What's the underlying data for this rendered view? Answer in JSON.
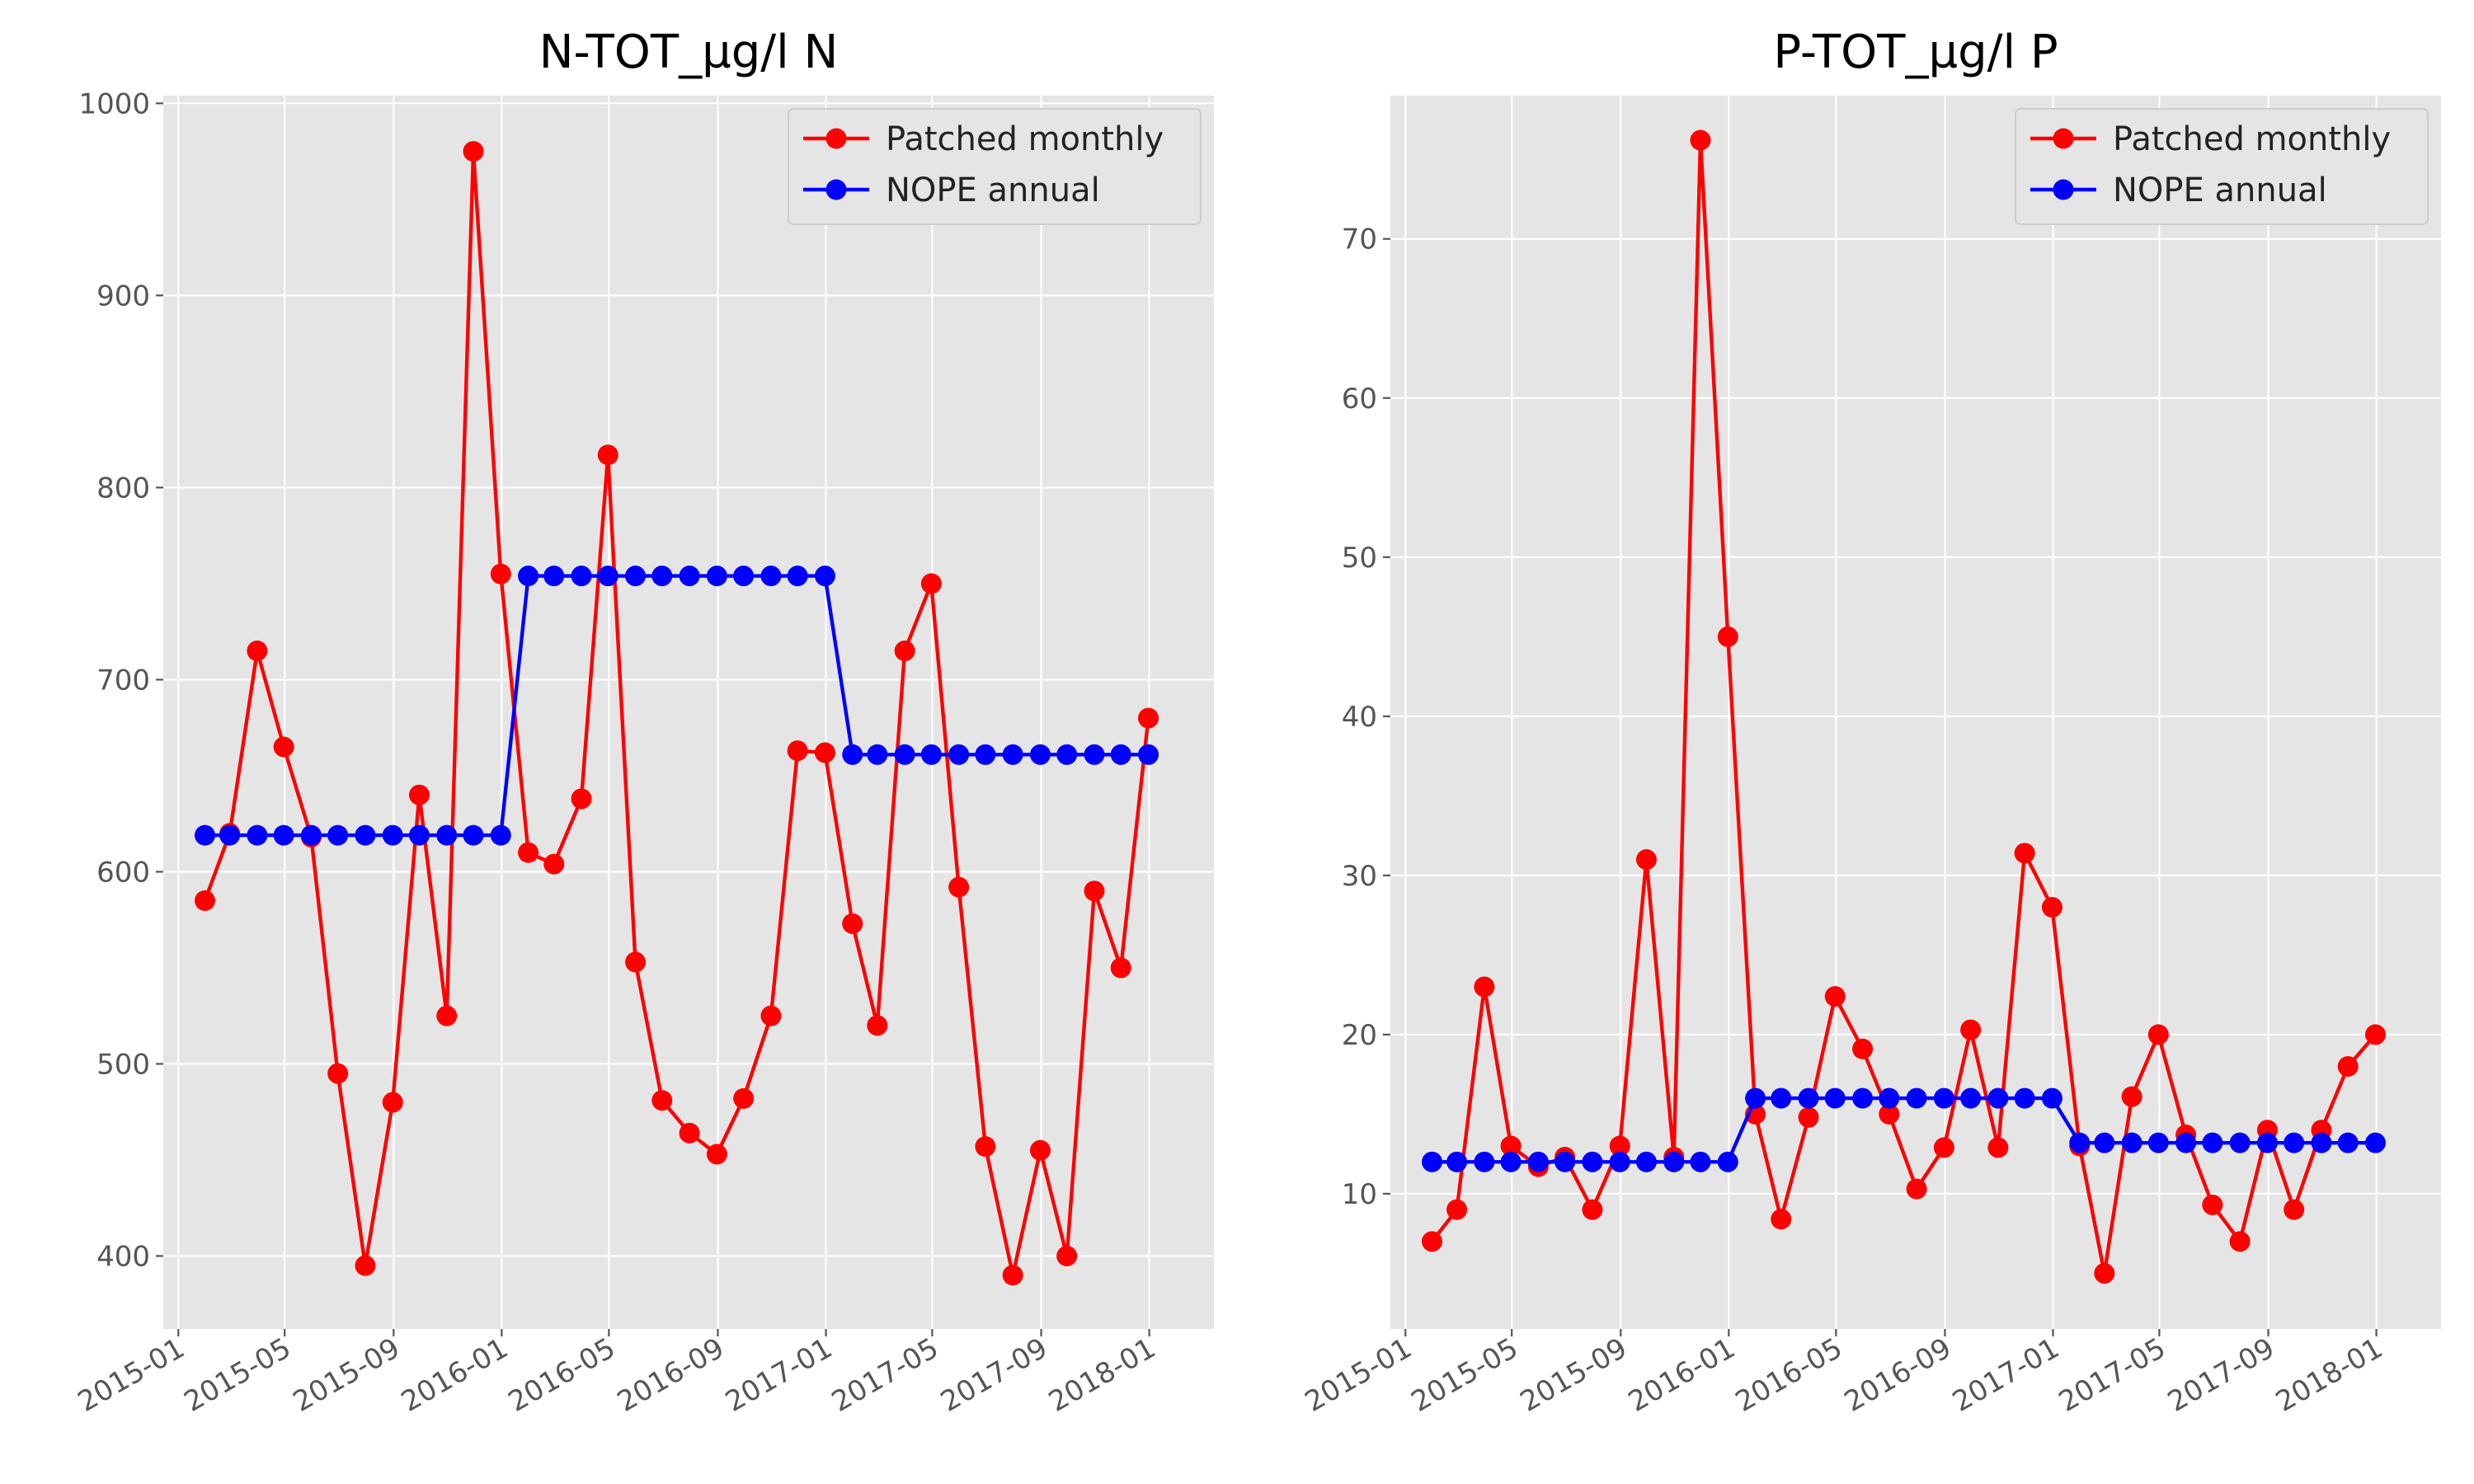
{
  "chart_data": [
    {
      "type": "line",
      "title": "N-TOT_µg/l N",
      "xlabel": "",
      "ylabel": "",
      "xlim": [
        "2014-12-15",
        "2018-03-15"
      ],
      "ylim": [
        362,
        1004
      ],
      "x_ticks": [
        "2015-01",
        "2015-05",
        "2015-09",
        "2016-01",
        "2016-05",
        "2016-09",
        "2017-01",
        "2017-05",
        "2017-09",
        "2018-01"
      ],
      "y_ticks": [
        "400",
        "500",
        "600",
        "700",
        "800",
        "900",
        "1000"
      ],
      "y_tick_values": [
        400,
        500,
        600,
        700,
        800,
        900,
        1000
      ],
      "grid": true,
      "legend_position": "top-right",
      "x": [
        "2015-01-31",
        "2015-02-28",
        "2015-03-31",
        "2015-04-30",
        "2015-05-31",
        "2015-06-30",
        "2015-07-31",
        "2015-08-31",
        "2015-09-30",
        "2015-10-31",
        "2015-11-30",
        "2015-12-31",
        "2016-01-31",
        "2016-02-29",
        "2016-03-31",
        "2016-04-30",
        "2016-05-31",
        "2016-06-30",
        "2016-07-31",
        "2016-08-31",
        "2016-09-30",
        "2016-10-31",
        "2016-11-30",
        "2016-12-31",
        "2017-01-31",
        "2017-02-28",
        "2017-03-31",
        "2017-04-30",
        "2017-05-31",
        "2017-06-30",
        "2017-07-31",
        "2017-08-31",
        "2017-09-30",
        "2017-10-31",
        "2017-11-30",
        "2017-12-31"
      ],
      "series": [
        {
          "name": "Patched monthly",
          "color": "#ff0000",
          "values": [
            585,
            620,
            715,
            665,
            618,
            495,
            395,
            480,
            640,
            525,
            975,
            755,
            610,
            604,
            638,
            817,
            553,
            481,
            464,
            453,
            482,
            525,
            663,
            662,
            573,
            520,
            715,
            750,
            592,
            457,
            390,
            455,
            400,
            590,
            550,
            680
          ]
        },
        {
          "name": "NOPE annual",
          "color": "#0000ff",
          "values": [
            619,
            619,
            619,
            619,
            619,
            619,
            619,
            619,
            619,
            619,
            619,
            619,
            754,
            754,
            754,
            754,
            754,
            754,
            754,
            754,
            754,
            754,
            754,
            754,
            661,
            661,
            661,
            661,
            661,
            661,
            661,
            661,
            661,
            661,
            661,
            661
          ]
        }
      ]
    },
    {
      "type": "line",
      "title": "P-TOT_µg/l P",
      "xlabel": "",
      "ylabel": "",
      "xlim": [
        "2014-12-15",
        "2018-03-15"
      ],
      "ylim": [
        1.5,
        79
      ],
      "x_ticks": [
        "2015-01",
        "2015-05",
        "2015-09",
        "2016-01",
        "2016-05",
        "2016-09",
        "2017-01",
        "2017-05",
        "2017-09",
        "2018-01"
      ],
      "y_ticks": [
        "10",
        "20",
        "30",
        "40",
        "50",
        "60",
        "70"
      ],
      "y_tick_values": [
        10,
        20,
        30,
        40,
        50,
        60,
        70
      ],
      "grid": true,
      "legend_position": "top-right",
      "x": [
        "2015-01-31",
        "2015-02-28",
        "2015-03-31",
        "2015-04-30",
        "2015-05-31",
        "2015-06-30",
        "2015-07-31",
        "2015-08-31",
        "2015-09-30",
        "2015-10-31",
        "2015-11-30",
        "2015-12-31",
        "2016-01-31",
        "2016-02-29",
        "2016-03-31",
        "2016-04-30",
        "2016-05-31",
        "2016-06-30",
        "2016-07-31",
        "2016-08-31",
        "2016-09-30",
        "2016-10-31",
        "2016-11-30",
        "2016-12-31",
        "2017-01-31",
        "2017-02-28",
        "2017-03-31",
        "2017-04-30",
        "2017-05-31",
        "2017-06-30",
        "2017-07-31",
        "2017-08-31",
        "2017-09-30",
        "2017-10-31",
        "2017-11-30",
        "2017-12-31"
      ],
      "series": [
        {
          "name": "Patched monthly",
          "color": "#ff0000",
          "values": [
            7,
            9,
            23,
            13,
            11.7,
            12.3,
            9,
            13,
            31,
            12.3,
            76.2,
            45,
            15,
            8.4,
            14.8,
            22.4,
            19.1,
            15,
            10.3,
            12.9,
            20.3,
            12.9,
            31.4,
            28,
            13,
            5,
            16.1,
            20,
            13.7,
            9.3,
            7,
            14,
            9,
            14,
            18,
            20
          ]
        },
        {
          "name": "NOPE annual",
          "color": "#0000ff",
          "values": [
            12,
            12,
            12,
            12,
            12,
            12,
            12,
            12,
            12,
            12,
            12,
            12,
            16,
            16,
            16,
            16,
            16,
            16,
            16,
            16,
            16,
            16,
            16,
            16,
            13.2,
            13.2,
            13.2,
            13.2,
            13.2,
            13.2,
            13.2,
            13.2,
            13.2,
            13.2,
            13.2,
            13.2
          ]
        }
      ]
    }
  ]
}
